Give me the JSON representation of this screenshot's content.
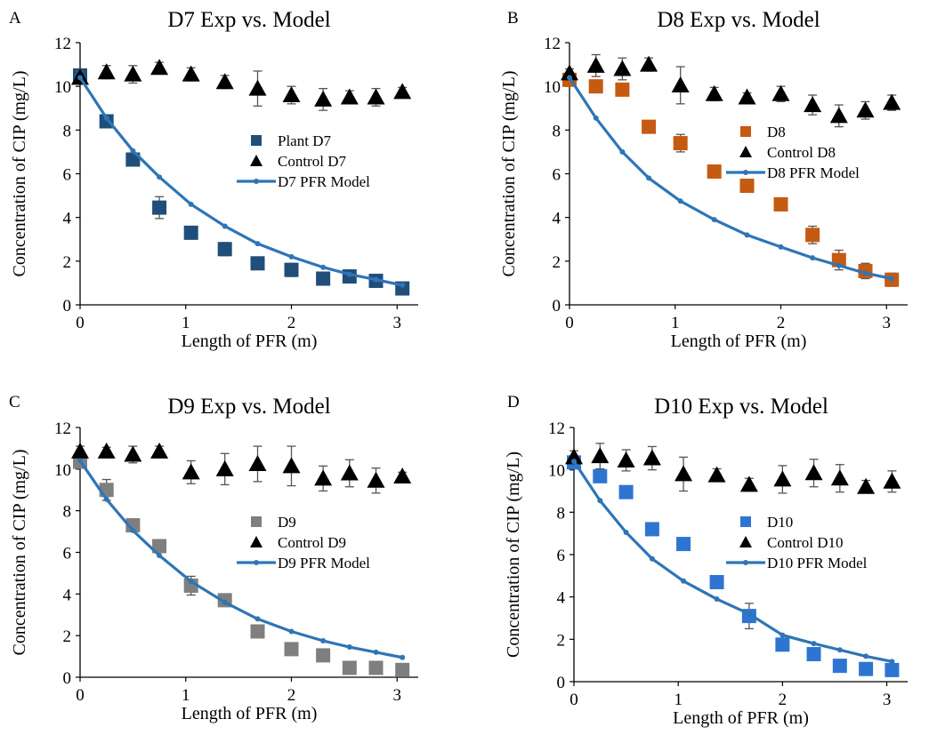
{
  "chart_data": [
    {
      "panel_label": "A",
      "type": "scatter",
      "title": "D7 Exp vs. Model",
      "xlabel": "Length of PFR (m)",
      "ylabel": "Concentration of CIP (mg/L)",
      "xlim": [
        0,
        3.2
      ],
      "ylim": [
        0,
        12
      ],
      "xticks": [
        "0",
        "1",
        "2",
        "3"
      ],
      "yticks": [
        "0",
        "2",
        "4",
        "6",
        "8",
        "10",
        "12"
      ],
      "legend_position": "middle-right",
      "series": [
        {
          "name": "Plant D7",
          "kind": "square",
          "color": "#1f4e79",
          "x": [
            0,
            0.25,
            0.5,
            0.75,
            1.05,
            1.37,
            1.68,
            2.0,
            2.3,
            2.55,
            2.8,
            3.05
          ],
          "y": [
            10.5,
            8.4,
            6.65,
            4.45,
            3.3,
            2.55,
            1.9,
            1.6,
            1.2,
            1.3,
            1.1,
            0.75
          ],
          "err": [
            0.2,
            0.2,
            0.2,
            0.5,
            0.2,
            0.3,
            0.1,
            0.3,
            0.1,
            0.15,
            0.1,
            0.2
          ]
        },
        {
          "name": "Control D7",
          "kind": "triangle",
          "color": "#000000",
          "x": [
            0,
            0.25,
            0.5,
            0.75,
            1.05,
            1.37,
            1.68,
            2.0,
            2.3,
            2.55,
            2.8,
            3.05
          ],
          "y": [
            10.4,
            10.65,
            10.55,
            10.85,
            10.55,
            10.2,
            9.9,
            9.6,
            9.4,
            9.5,
            9.5,
            9.75
          ],
          "err": [
            0.3,
            0.3,
            0.4,
            0.25,
            0.3,
            0.3,
            0.8,
            0.4,
            0.5,
            0.3,
            0.4,
            0.2
          ]
        },
        {
          "name": "D7 PFR Model",
          "kind": "line",
          "color": "#2e75b6",
          "x": [
            0,
            0.25,
            0.5,
            0.75,
            1.05,
            1.37,
            1.68,
            2.0,
            2.3,
            2.55,
            2.8,
            3.05
          ],
          "y": [
            10.4,
            8.55,
            7.05,
            5.85,
            4.6,
            3.6,
            2.8,
            2.2,
            1.72,
            1.4,
            1.15,
            0.9
          ]
        }
      ]
    },
    {
      "panel_label": "B",
      "type": "scatter",
      "title": "D8 Exp vs. Model",
      "xlabel": "Length of PFR (m)",
      "ylabel": "Concentration of CIP (mg/L)",
      "xlim": [
        0,
        3.2
      ],
      "ylim": [
        0,
        12
      ],
      "xticks": [
        "0",
        "1",
        "2",
        "3"
      ],
      "yticks": [
        "0",
        "2",
        "4",
        "6",
        "8",
        "10",
        "12"
      ],
      "legend_position": "middle-right",
      "series": [
        {
          "name": "D8",
          "kind": "square",
          "color": "#c55a11",
          "x": [
            0,
            0.25,
            0.5,
            0.75,
            1.05,
            1.37,
            1.68,
            2.0,
            2.3,
            2.55,
            2.8,
            3.05
          ],
          "y": [
            10.3,
            10.0,
            9.85,
            8.15,
            7.4,
            6.1,
            5.45,
            4.6,
            3.2,
            2.05,
            1.55,
            1.15
          ],
          "err": [
            0.2,
            0.2,
            0.15,
            0.2,
            0.4,
            0.2,
            0.15,
            0.2,
            0.4,
            0.45,
            0.35,
            0.3
          ]
        },
        {
          "name": "Control D8",
          "kind": "triangle",
          "color": "#000000",
          "x": [
            0,
            0.25,
            0.5,
            0.75,
            1.05,
            1.37,
            1.68,
            2.0,
            2.3,
            2.55,
            2.8,
            3.05
          ],
          "y": [
            10.6,
            10.95,
            10.8,
            11.0,
            10.05,
            9.65,
            9.5,
            9.65,
            9.15,
            8.65,
            8.9,
            9.25
          ],
          "err": [
            0.2,
            0.5,
            0.5,
            0.3,
            0.85,
            0.3,
            0.2,
            0.35,
            0.45,
            0.5,
            0.4,
            0.35
          ]
        },
        {
          "name": "D8 PFR Model",
          "kind": "line",
          "color": "#2e75b6",
          "x": [
            0,
            0.25,
            0.5,
            0.75,
            1.05,
            1.37,
            1.68,
            2.0,
            2.3,
            2.55,
            2.8,
            3.05
          ],
          "y": [
            10.4,
            8.55,
            7.0,
            5.8,
            4.75,
            3.9,
            3.2,
            2.65,
            2.15,
            1.8,
            1.45,
            1.2
          ]
        }
      ]
    },
    {
      "panel_label": "C",
      "type": "scatter",
      "title": "D9 Exp vs. Model",
      "xlabel": "Length of PFR (m)",
      "ylabel": "Concentration of CIP (mg/L)",
      "xlim": [
        0,
        3.2
      ],
      "ylim": [
        0,
        12
      ],
      "xticks": [
        "0",
        "1",
        "2",
        "3"
      ],
      "yticks": [
        "0",
        "2",
        "4",
        "6",
        "8",
        "10",
        "12"
      ],
      "legend_position": "middle-right",
      "series": [
        {
          "name": "D9",
          "kind": "square",
          "color": "#7f7f7f",
          "x": [
            0,
            0.25,
            0.5,
            0.75,
            1.05,
            1.37,
            1.68,
            2.0,
            2.3,
            2.55,
            2.8,
            3.05
          ],
          "y": [
            10.35,
            9.0,
            7.3,
            6.3,
            4.4,
            3.7,
            2.2,
            1.35,
            1.05,
            0.45,
            0.45,
            0.35
          ],
          "err": [
            0.2,
            0.5,
            0.3,
            0.2,
            0.45,
            0.3,
            0.1,
            0.1,
            0.1,
            0.05,
            0.05,
            0.05
          ]
        },
        {
          "name": "Control D9",
          "kind": "triangle",
          "color": "#000000",
          "x": [
            0,
            0.25,
            0.5,
            0.75,
            1.05,
            1.37,
            1.68,
            2.0,
            2.3,
            2.55,
            2.8,
            3.05
          ],
          "y": [
            10.85,
            10.85,
            10.7,
            10.85,
            9.85,
            10.0,
            10.25,
            10.15,
            9.55,
            9.8,
            9.45,
            9.65
          ],
          "err": [
            0.25,
            0.2,
            0.4,
            0.25,
            0.55,
            0.75,
            0.85,
            0.95,
            0.6,
            0.65,
            0.6,
            0.2
          ]
        },
        {
          "name": "D9 PFR Model",
          "kind": "line",
          "color": "#2e75b6",
          "x": [
            0,
            0.25,
            0.5,
            0.75,
            1.05,
            1.37,
            1.68,
            2.0,
            2.3,
            2.55,
            2.8,
            3.05
          ],
          "y": [
            10.4,
            8.55,
            7.05,
            5.85,
            4.6,
            3.6,
            2.8,
            2.2,
            1.75,
            1.45,
            1.2,
            0.95
          ]
        }
      ]
    },
    {
      "panel_label": "D",
      "type": "scatter",
      "title": "D10 Exp vs. Model",
      "xlabel": "Length of PFR (m)",
      "ylabel": "Concentration of CIP (mg/L)",
      "xlim": [
        0,
        3.2
      ],
      "ylim": [
        0,
        12
      ],
      "xticks": [
        "0",
        "1",
        "2",
        "3"
      ],
      "yticks": [
        "0",
        "2",
        "4",
        "6",
        "8",
        "10",
        "12"
      ],
      "legend_position": "middle-right",
      "series": [
        {
          "name": "D10",
          "kind": "square",
          "color": "#2e75d1",
          "x": [
            0,
            0.25,
            0.5,
            0.75,
            1.05,
            1.37,
            1.68,
            2.0,
            2.3,
            2.55,
            2.8,
            3.05
          ],
          "y": [
            10.35,
            9.7,
            8.95,
            7.2,
            6.5,
            4.7,
            3.1,
            1.75,
            1.3,
            0.75,
            0.6,
            0.55
          ],
          "err": [
            0.2,
            0.2,
            0.2,
            0.2,
            0.2,
            0.3,
            0.6,
            0.2,
            0.2,
            0.1,
            0.1,
            0.1
          ]
        },
        {
          "name": "Control D10",
          "kind": "triangle",
          "color": "#000000",
          "x": [
            0,
            0.25,
            0.5,
            0.75,
            1.05,
            1.37,
            1.68,
            2.0,
            2.3,
            2.55,
            2.8,
            3.05
          ],
          "y": [
            10.6,
            10.65,
            10.45,
            10.55,
            9.8,
            9.75,
            9.3,
            9.55,
            9.85,
            9.6,
            9.2,
            9.45
          ],
          "err": [
            0.3,
            0.6,
            0.5,
            0.55,
            0.8,
            0.3,
            0.3,
            0.65,
            0.65,
            0.65,
            0.3,
            0.5
          ]
        },
        {
          "name": "D10 PFR Model",
          "kind": "line",
          "color": "#2e75b6",
          "x": [
            0,
            0.25,
            0.5,
            0.75,
            1.05,
            1.37,
            1.68,
            2.0,
            2.3,
            2.55,
            2.8,
            3.05
          ],
          "y": [
            10.4,
            8.55,
            7.05,
            5.8,
            4.75,
            3.9,
            3.2,
            2.2,
            1.8,
            1.5,
            1.2,
            0.95
          ]
        }
      ]
    }
  ]
}
